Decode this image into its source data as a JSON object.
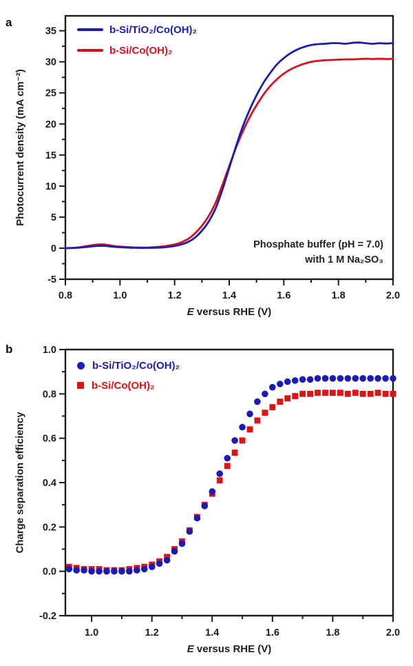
{
  "panels": {
    "a": {
      "letter": "a"
    },
    "b": {
      "letter": "b"
    }
  },
  "colors": {
    "blue": "#1b1cb8",
    "red": "#d8111c",
    "red_marker": "#e01212",
    "axis": "#1a1a1a",
    "text": "#1d1d1d"
  },
  "chart_data": [
    {
      "id": "a",
      "type": "line",
      "title": "",
      "xlabel": "E versus RHE (V)",
      "xlabel_em": "E",
      "xlabel_rest": " versus RHE (V)",
      "ylabel": "Photocurrent density (mA cm⁻²)",
      "xlim": [
        0.8,
        2.0
      ],
      "ylim": [
        -5,
        37.4
      ],
      "grid": false,
      "legend_position": "top-left",
      "x_major_ticks": [
        0.8,
        1.0,
        1.2,
        1.4,
        1.6,
        1.8,
        2.0
      ],
      "x_tick_labels": [
        "0.8",
        "1.0",
        "1.2",
        "1.4",
        "1.6",
        "1.8",
        "2.0"
      ],
      "x_minor_ticks": [
        0.9,
        1.1,
        1.3,
        1.5,
        1.7,
        1.9
      ],
      "y_major_ticks": [
        -5,
        0,
        5,
        10,
        15,
        20,
        25,
        30,
        35
      ],
      "y_tick_labels": [
        "-5",
        "0",
        "5",
        "10",
        "15",
        "20",
        "25",
        "30",
        "35"
      ],
      "y_minor_ticks": [
        -2.5,
        2.5,
        7.5,
        12.5,
        17.5,
        22.5,
        27.5,
        32.5
      ],
      "annotation": [
        "Phosphate buffer (pH = 7.0)",
        "with 1 M Na₂SO₃"
      ],
      "series": [
        {
          "name": "b-Si/TiO₂/Co(OH)₂",
          "color": "#1b1cb8",
          "style": "line",
          "points": [
            [
              0.8,
              0.0
            ],
            [
              0.84,
              0.05
            ],
            [
              0.88,
              0.2
            ],
            [
              0.91,
              0.35
            ],
            [
              0.94,
              0.38
            ],
            [
              0.97,
              0.25
            ],
            [
              1.0,
              0.15
            ],
            [
              1.05,
              0.06
            ],
            [
              1.1,
              0.05
            ],
            [
              1.15,
              0.1
            ],
            [
              1.175,
              0.2
            ],
            [
              1.2,
              0.35
            ],
            [
              1.225,
              0.6
            ],
            [
              1.25,
              1.0
            ],
            [
              1.275,
              1.7
            ],
            [
              1.3,
              2.8
            ],
            [
              1.325,
              4.3
            ],
            [
              1.35,
              6.4
            ],
            [
              1.375,
              9.4
            ],
            [
              1.4,
              12.9
            ],
            [
              1.425,
              16.4
            ],
            [
              1.45,
              19.6
            ],
            [
              1.475,
              22.3
            ],
            [
              1.5,
              24.6
            ],
            [
              1.525,
              26.6
            ],
            [
              1.55,
              28.2
            ],
            [
              1.575,
              29.6
            ],
            [
              1.6,
              30.6
            ],
            [
              1.625,
              31.4
            ],
            [
              1.65,
              32.0
            ],
            [
              1.675,
              32.4
            ],
            [
              1.7,
              32.7
            ],
            [
              1.725,
              32.85
            ],
            [
              1.75,
              32.9
            ],
            [
              1.775,
              33.0
            ],
            [
              1.8,
              33.0
            ],
            [
              1.825,
              32.9
            ],
            [
              1.85,
              33.05
            ],
            [
              1.875,
              33.1
            ],
            [
              1.9,
              33.0
            ],
            [
              1.925,
              32.9
            ],
            [
              1.95,
              33.0
            ],
            [
              1.975,
              32.95
            ],
            [
              2.0,
              33.0
            ]
          ]
        },
        {
          "name": "b-Si/Co(OH)₂",
          "color": "#d8111c",
          "style": "line",
          "points": [
            [
              0.8,
              0.0
            ],
            [
              0.84,
              0.1
            ],
            [
              0.88,
              0.35
            ],
            [
              0.91,
              0.55
            ],
            [
              0.94,
              0.6
            ],
            [
              0.97,
              0.4
            ],
            [
              1.0,
              0.25
            ],
            [
              1.05,
              0.12
            ],
            [
              1.1,
              0.1
            ],
            [
              1.15,
              0.25
            ],
            [
              1.175,
              0.4
            ],
            [
              1.2,
              0.6
            ],
            [
              1.225,
              0.95
            ],
            [
              1.25,
              1.5
            ],
            [
              1.275,
              2.4
            ],
            [
              1.3,
              3.6
            ],
            [
              1.325,
              5.2
            ],
            [
              1.35,
              7.3
            ],
            [
              1.375,
              10.2
            ],
            [
              1.4,
              13.2
            ],
            [
              1.425,
              16.2
            ],
            [
              1.45,
              18.8
            ],
            [
              1.475,
              21.1
            ],
            [
              1.5,
              23.0
            ],
            [
              1.525,
              24.7
            ],
            [
              1.55,
              26.1
            ],
            [
              1.575,
              27.2
            ],
            [
              1.6,
              28.1
            ],
            [
              1.625,
              28.8
            ],
            [
              1.65,
              29.3
            ],
            [
              1.675,
              29.7
            ],
            [
              1.7,
              30.0
            ],
            [
              1.725,
              30.15
            ],
            [
              1.75,
              30.25
            ],
            [
              1.775,
              30.3
            ],
            [
              1.8,
              30.35
            ],
            [
              1.825,
              30.4
            ],
            [
              1.85,
              30.4
            ],
            [
              1.875,
              30.45
            ],
            [
              1.9,
              30.5
            ],
            [
              1.925,
              30.45
            ],
            [
              1.95,
              30.5
            ],
            [
              1.975,
              30.45
            ],
            [
              2.0,
              30.5
            ]
          ]
        }
      ]
    },
    {
      "id": "b",
      "type": "scatter",
      "title": "",
      "xlabel": "E versus RHE (V)",
      "xlabel_em": "E",
      "xlabel_rest": " versus RHE (V)",
      "ylabel": "Charge separation efficiency",
      "xlim": [
        0.913,
        2.0
      ],
      "ylim": [
        -0.2,
        1.0
      ],
      "grid": false,
      "legend_position": "top-left",
      "x_major_ticks": [
        1.0,
        1.2,
        1.4,
        1.6,
        1.8,
        2.0
      ],
      "x_tick_labels": [
        "1.0",
        "1.2",
        "1.4",
        "1.6",
        "1.8",
        "2.0"
      ],
      "x_minor_ticks": [
        1.1,
        1.3,
        1.5,
        1.7,
        1.9
      ],
      "y_major_ticks": [
        -0.2,
        0.0,
        0.2,
        0.4,
        0.6,
        0.8,
        1.0
      ],
      "y_tick_labels": [
        "-0.2",
        "0.0",
        "0.2",
        "0.4",
        "0.6",
        "0.8",
        "1.0"
      ],
      "y_minor_ticks": [
        -0.1,
        0.1,
        0.3,
        0.5,
        0.7,
        0.9
      ],
      "annotation": [],
      "series": [
        {
          "name": "b-Si/TiO₂/Co(OH)₂",
          "color": "#1b1cb8",
          "style": "scatter",
          "marker": "circle",
          "points": [
            [
              0.925,
              0.01
            ],
            [
              0.95,
              0.005
            ],
            [
              0.975,
              0.005
            ],
            [
              1.0,
              0.0
            ],
            [
              1.025,
              0.0
            ],
            [
              1.05,
              0.0
            ],
            [
              1.075,
              0.0
            ],
            [
              1.1,
              0.0
            ],
            [
              1.125,
              0.0
            ],
            [
              1.15,
              0.005
            ],
            [
              1.175,
              0.01
            ],
            [
              1.2,
              0.02
            ],
            [
              1.225,
              0.035
            ],
            [
              1.25,
              0.05
            ],
            [
              1.275,
              0.09
            ],
            [
              1.3,
              0.125
            ],
            [
              1.325,
              0.18
            ],
            [
              1.35,
              0.24
            ],
            [
              1.375,
              0.295
            ],
            [
              1.4,
              0.36
            ],
            [
              1.425,
              0.44
            ],
            [
              1.45,
              0.51
            ],
            [
              1.475,
              0.59
            ],
            [
              1.5,
              0.65
            ],
            [
              1.525,
              0.71
            ],
            [
              1.55,
              0.765
            ],
            [
              1.575,
              0.8
            ],
            [
              1.6,
              0.83
            ],
            [
              1.625,
              0.845
            ],
            [
              1.65,
              0.855
            ],
            [
              1.675,
              0.86
            ],
            [
              1.7,
              0.865
            ],
            [
              1.725,
              0.865
            ],
            [
              1.75,
              0.87
            ],
            [
              1.775,
              0.87
            ],
            [
              1.8,
              0.87
            ],
            [
              1.825,
              0.87
            ],
            [
              1.85,
              0.87
            ],
            [
              1.875,
              0.87
            ],
            [
              1.9,
              0.87
            ],
            [
              1.925,
              0.87
            ],
            [
              1.95,
              0.87
            ],
            [
              1.975,
              0.87
            ],
            [
              2.0,
              0.87
            ]
          ]
        },
        {
          "name": "b-Si/Co(OH)₂",
          "color": "#e01212",
          "style": "scatter",
          "marker": "square",
          "points": [
            [
              0.925,
              0.02
            ],
            [
              0.95,
              0.015
            ],
            [
              0.975,
              0.01
            ],
            [
              1.0,
              0.01
            ],
            [
              1.025,
              0.01
            ],
            [
              1.05,
              0.005
            ],
            [
              1.075,
              0.005
            ],
            [
              1.1,
              0.005
            ],
            [
              1.125,
              0.01
            ],
            [
              1.15,
              0.015
            ],
            [
              1.175,
              0.02
            ],
            [
              1.2,
              0.03
            ],
            [
              1.225,
              0.045
            ],
            [
              1.25,
              0.065
            ],
            [
              1.275,
              0.1
            ],
            [
              1.3,
              0.135
            ],
            [
              1.325,
              0.185
            ],
            [
              1.35,
              0.245
            ],
            [
              1.375,
              0.3
            ],
            [
              1.4,
              0.35
            ],
            [
              1.425,
              0.41
            ],
            [
              1.45,
              0.475
            ],
            [
              1.475,
              0.535
            ],
            [
              1.5,
              0.59
            ],
            [
              1.525,
              0.64
            ],
            [
              1.55,
              0.68
            ],
            [
              1.575,
              0.715
            ],
            [
              1.6,
              0.74
            ],
            [
              1.625,
              0.765
            ],
            [
              1.65,
              0.78
            ],
            [
              1.675,
              0.79
            ],
            [
              1.7,
              0.8
            ],
            [
              1.725,
              0.8
            ],
            [
              1.75,
              0.805
            ],
            [
              1.775,
              0.805
            ],
            [
              1.8,
              0.805
            ],
            [
              1.825,
              0.805
            ],
            [
              1.85,
              0.8
            ],
            [
              1.875,
              0.805
            ],
            [
              1.9,
              0.8
            ],
            [
              1.925,
              0.8
            ],
            [
              1.95,
              0.805
            ],
            [
              1.975,
              0.8
            ],
            [
              2.0,
              0.8
            ]
          ]
        }
      ]
    }
  ]
}
